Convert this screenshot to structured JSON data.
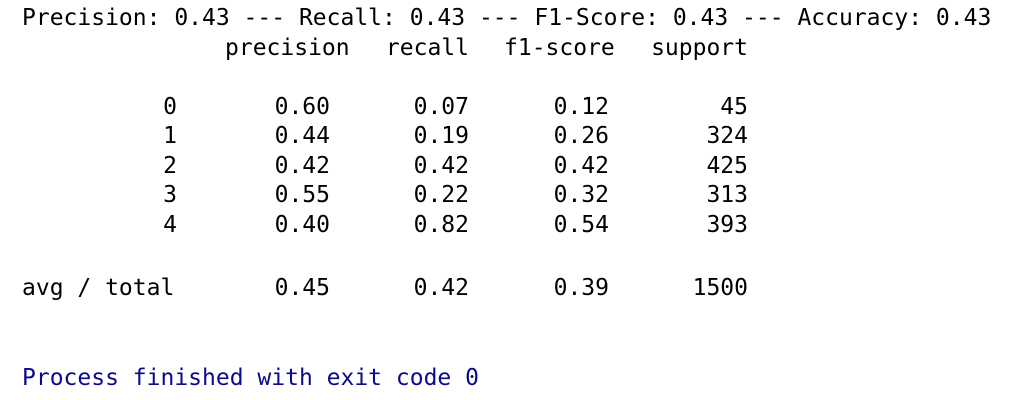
{
  "summary_line": "Precision: 0.43 --- Recall: 0.43 --- F1-Score: 0.43 --- Accuracy: 0.43",
  "report": {
    "headers": [
      "precision",
      "recall",
      "f1-score",
      "support"
    ],
    "rows": [
      {
        "label": "0",
        "precision": "0.60",
        "recall": "0.07",
        "f1": "0.12",
        "support": "45"
      },
      {
        "label": "1",
        "precision": "0.44",
        "recall": "0.19",
        "f1": "0.26",
        "support": "324"
      },
      {
        "label": "2",
        "precision": "0.42",
        "recall": "0.42",
        "f1": "0.42",
        "support": "425"
      },
      {
        "label": "3",
        "precision": "0.55",
        "recall": "0.22",
        "f1": "0.32",
        "support": "313"
      },
      {
        "label": "4",
        "precision": "0.40",
        "recall": "0.82",
        "f1": "0.54",
        "support": "393"
      }
    ],
    "total": {
      "label": "avg / total",
      "precision": "0.45",
      "recall": "0.42",
      "f1": "0.39",
      "support": "1500"
    }
  },
  "exit_message": "Process finished with exit code 0",
  "colors": {
    "text": "#000000",
    "exit_text": "#0a0a8a",
    "background": "#ffffff"
  }
}
